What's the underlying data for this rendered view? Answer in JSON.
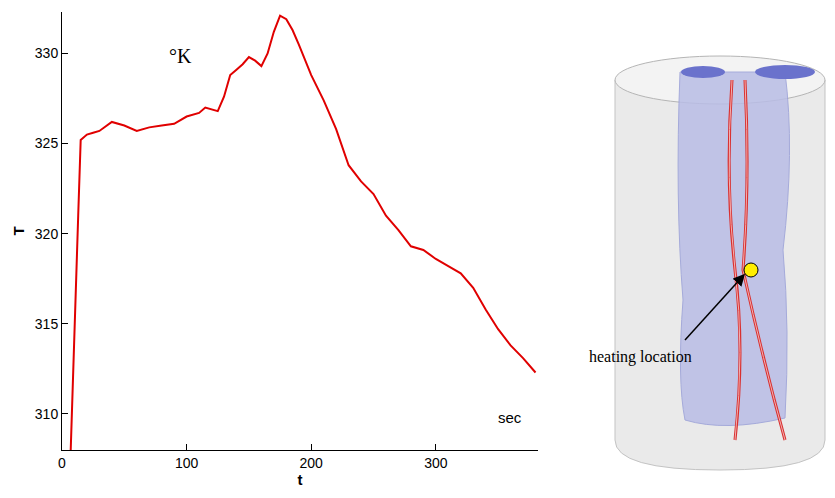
{
  "chart_data": {
    "type": "line",
    "x_label": "t",
    "y_label": "T",
    "annotations": [
      "°K",
      "sec"
    ],
    "color": "#e00000",
    "x": [
      7,
      10,
      13,
      15,
      20,
      25,
      30,
      40,
      50,
      60,
      70,
      80,
      90,
      100,
      110,
      115,
      120,
      125,
      130,
      135,
      140,
      145,
      150,
      155,
      160,
      165,
      170,
      175,
      180,
      185,
      190,
      195,
      200,
      210,
      220,
      230,
      240,
      250,
      260,
      270,
      280,
      290,
      300,
      310,
      320,
      330,
      340,
      350,
      360,
      370,
      380
    ],
    "values": [
      308,
      314,
      321,
      325.2,
      325.5,
      325.6,
      325.7,
      326.2,
      326.0,
      325.7,
      325.9,
      326.0,
      326.1,
      326.5,
      326.7,
      327.0,
      326.9,
      326.8,
      327.6,
      328.8,
      329.1,
      329.4,
      329.8,
      329.6,
      329.3,
      330.0,
      331.2,
      332.1,
      331.9,
      331.3,
      330.5,
      329.6,
      328.8,
      327.4,
      325.8,
      323.8,
      322.9,
      322.2,
      321.0,
      320.2,
      319.3,
      319.1,
      318.6,
      318.2,
      317.8,
      317.0,
      315.8,
      314.7,
      313.8,
      313.1,
      312.3
    ],
    "xlim": [
      0,
      382
    ],
    "ylim": [
      308,
      332.3
    ],
    "xticks": [
      0,
      100,
      200,
      300
    ],
    "yticks": [
      310,
      315,
      320,
      325,
      330
    ],
    "grid": false
  },
  "diagram": {
    "label": "heating location"
  }
}
